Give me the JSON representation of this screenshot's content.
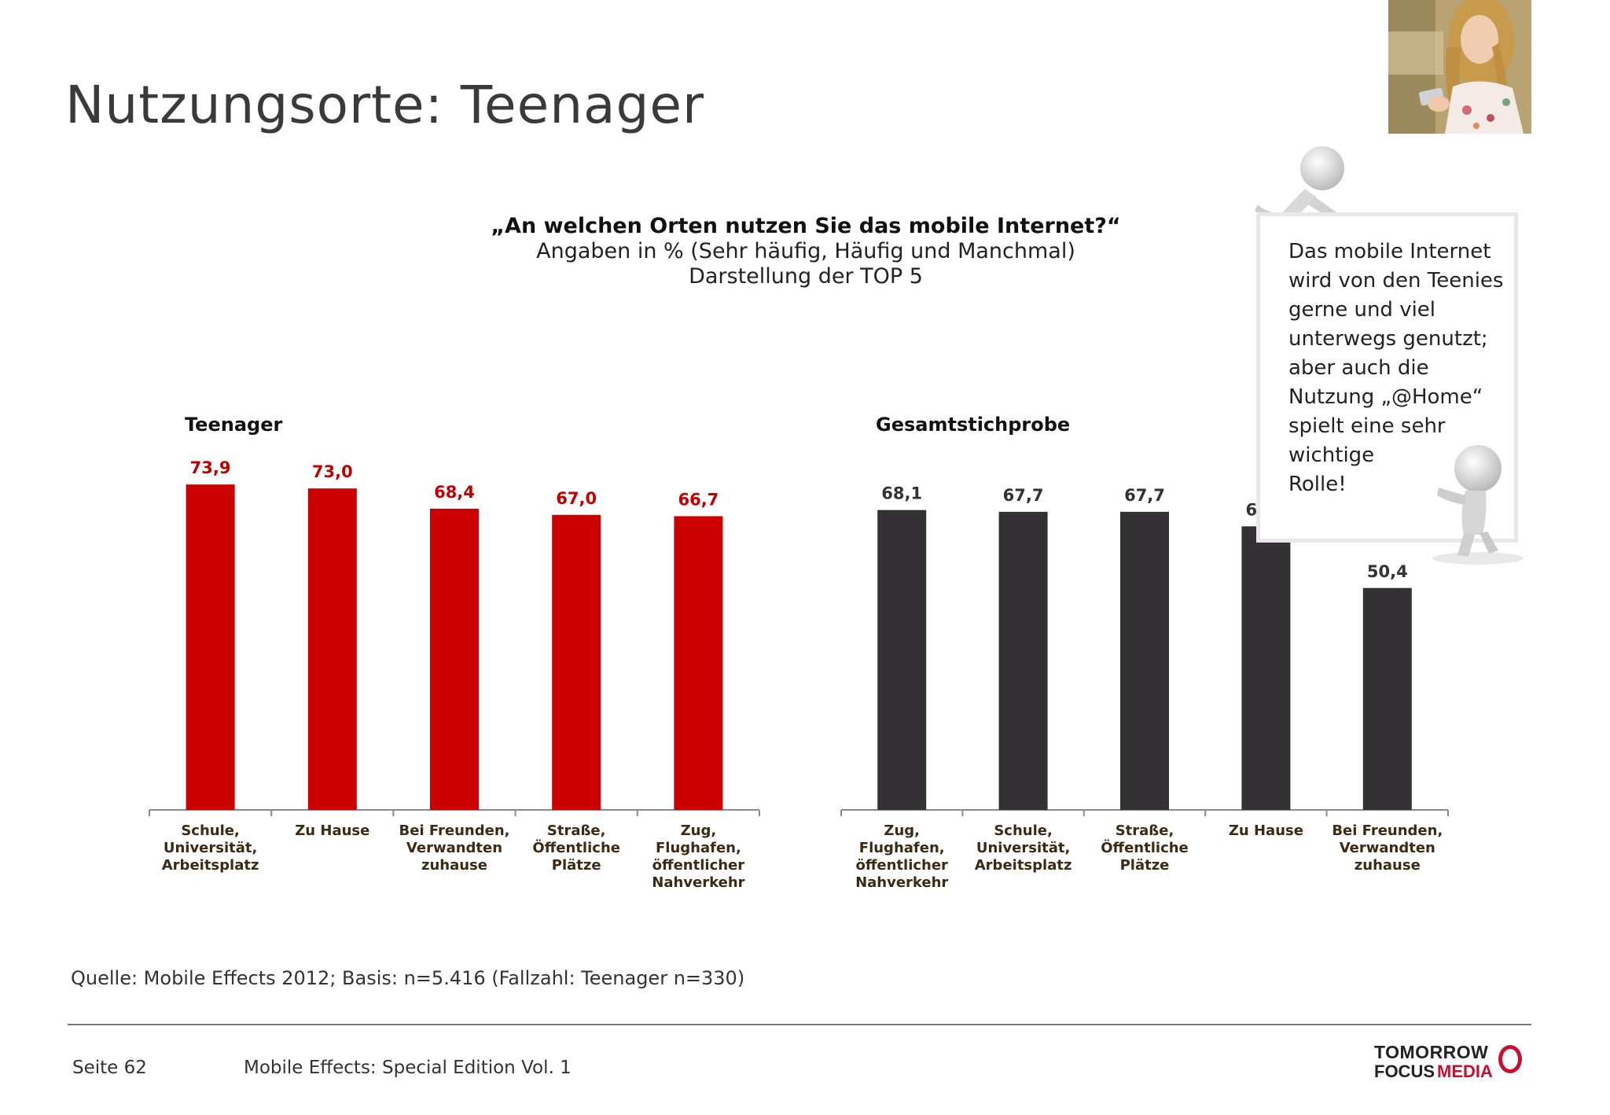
{
  "page": {
    "title": "Nutzungsorte: Teenager",
    "question": "„An welchen Orten nutzen Sie das mobile Internet?“",
    "subtitle_line1": "Angaben in % (Sehr häufig, Häufig und Manchmal)",
    "subtitle_line2": "Darstellung der TOP 5",
    "source": "Quelle: Mobile Effects 2012; Basis: n=5.416 (Fallzahl: Teenager n=330)",
    "page_number": "Seite 62",
    "publication": "Mobile Effects: Special Edition Vol. 1"
  },
  "callout": {
    "lines": [
      "Das mobile Internet",
      "wird von den Teenies",
      "gerne und viel",
      "unterwegs genutzt;",
      "aber auch die",
      "Nutzung „@Home“",
      "spielt eine sehr",
      "wichtige",
      "Rolle!"
    ]
  },
  "brand": {
    "word1": "TOMORROW",
    "word2": "FOCUS",
    "word3": "MEDIA"
  },
  "colors": {
    "teen_bar": "#cc0000",
    "teen_label": "#c00000",
    "total_bar": "#333133",
    "total_label": "#333333",
    "category_text": "#3b2a14",
    "axis": "#8a8a8a"
  },
  "chart_data": [
    {
      "type": "bar",
      "title": "Teenager",
      "categories": [
        "Schule, Universität, Arbeitsplatz",
        "Zu Hause",
        "Bei Freunden, Verwandten zuhause",
        "Straße, Öffentliche Plätze",
        "Zug, Flughafen, öffentlicher Nahverkehr"
      ],
      "category_lines": [
        [
          "Schule,",
          "Universität,",
          "Arbeitsplatz"
        ],
        [
          "Zu Hause"
        ],
        [
          "Bei Freunden,",
          "Verwandten",
          "zuhause"
        ],
        [
          "Straße,",
          "Öffentliche",
          "Plätze"
        ],
        [
          "Zug,",
          "Flughafen,",
          "öffentlicher",
          "Nahverkehr"
        ]
      ],
      "values": [
        73.9,
        73.0,
        68.4,
        67.0,
        66.7
      ],
      "labels": [
        "73,9",
        "73,0",
        "68,4",
        "67,0",
        "66,7"
      ],
      "ylim": [
        0,
        100
      ],
      "grid": false
    },
    {
      "type": "bar",
      "title": "Gesamtstichprobe",
      "categories": [
        "Zug, Flughafen, öffentlicher Nahverkehr",
        "Schule, Universität, Arbeitsplatz",
        "Straße, Öffentliche Plätze",
        "Zu Hause",
        "Bei Freunden, Verwandten zuhause"
      ],
      "category_lines": [
        [
          "Zug,",
          "Flughafen,",
          "öffentlicher",
          "Nahverkehr"
        ],
        [
          "Schule,",
          "Universität,",
          "Arbeitsplatz"
        ],
        [
          "Straße,",
          "Öffentliche",
          "Plätze"
        ],
        [
          "Zu Hause"
        ],
        [
          "Bei Freunden,",
          "Verwandten",
          "zuhause"
        ]
      ],
      "values": [
        68.1,
        67.7,
        67.7,
        64.4,
        50.4
      ],
      "labels": [
        "68,1",
        "67,7",
        "67,7",
        "64,4",
        "50,4"
      ],
      "ylim": [
        0,
        100
      ],
      "grid": false
    }
  ]
}
